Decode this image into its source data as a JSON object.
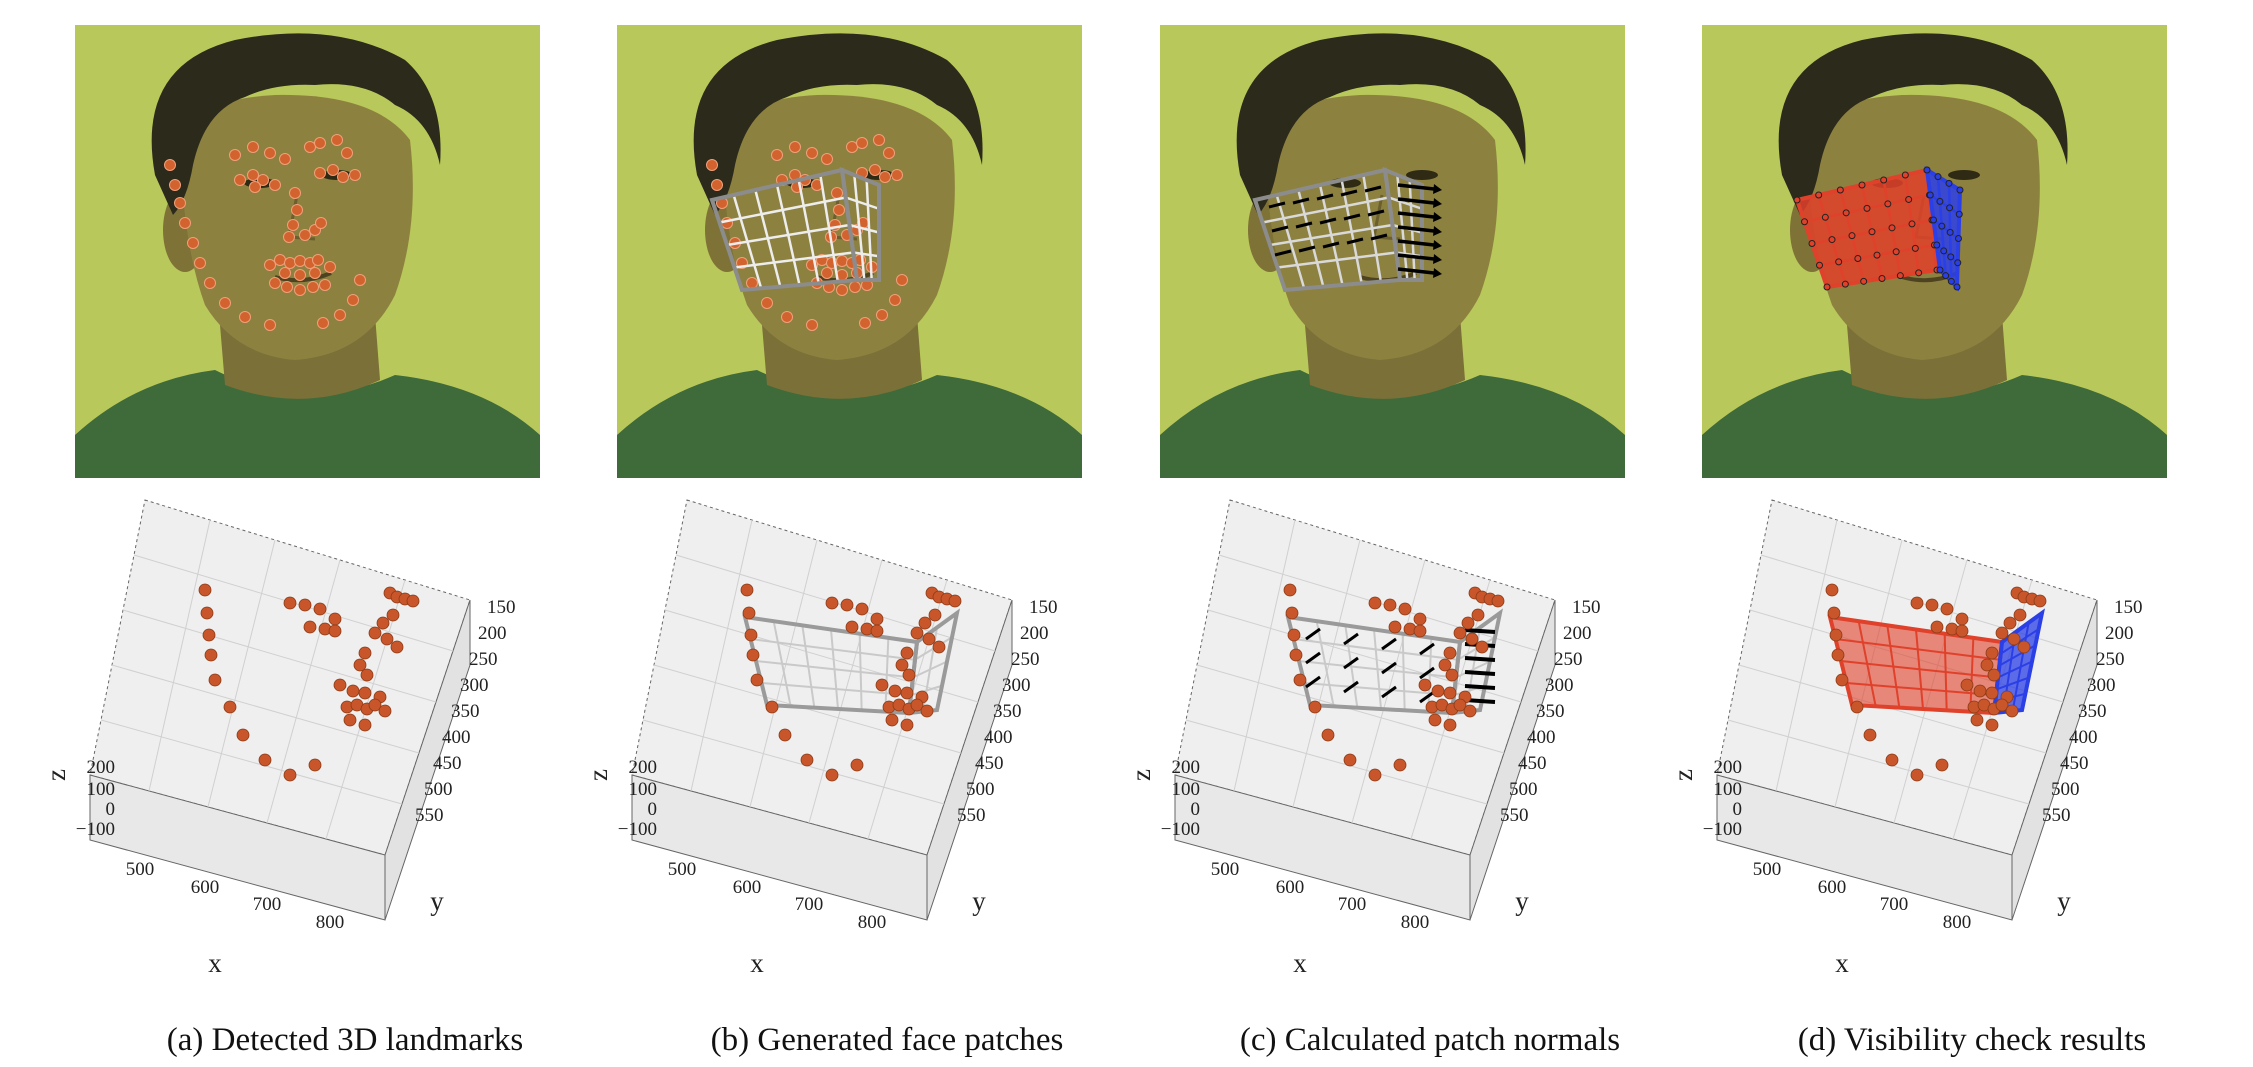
{
  "panels": [
    {
      "caption": "(a) Detected 3D landmarks",
      "overlay": "landmarks"
    },
    {
      "caption": "(b) Generated face patches",
      "overlay": "patches"
    },
    {
      "caption": "(c) Calculated patch normals",
      "overlay": "normals"
    },
    {
      "caption": "(d) Visibility check results",
      "overlay": "visibility"
    }
  ],
  "axes": {
    "x_label": "x",
    "y_label": "y",
    "z_label": "z",
    "x_ticks": [
      "500",
      "600",
      "700",
      "800"
    ],
    "y_ticks": [
      "150",
      "200",
      "250",
      "300",
      "350",
      "400",
      "450",
      "500",
      "550"
    ],
    "z_ticks": [
      "200",
      "100",
      "0",
      "−100"
    ]
  },
  "colors": {
    "photo_bg": "#b9c85a",
    "skin": "#8d8140",
    "hair": "#2b2a1b",
    "hoodie": "#3f6a3a",
    "landmark": "#d2622e",
    "grid_patch": "#b5b5b5",
    "normal_arrow": "#000000",
    "visible_patch": "#e0412a",
    "occluded_patch": "#2b3fe6",
    "plot_bg": "#efefef"
  }
}
